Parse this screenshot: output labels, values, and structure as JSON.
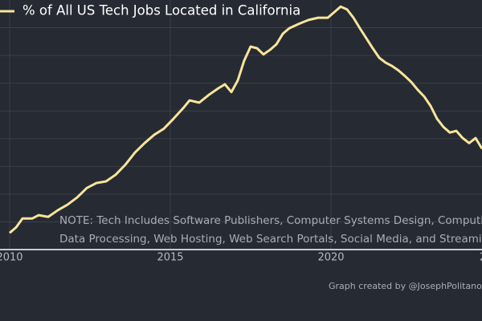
{
  "chart_data": {
    "type": "line",
    "x": [
      2010.0,
      2010.2,
      2010.4,
      2010.7,
      2010.9,
      2011.2,
      2011.5,
      2011.8,
      2012.1,
      2012.4,
      2012.7,
      2013.0,
      2013.3,
      2013.6,
      2013.9,
      2014.2,
      2014.5,
      2014.8,
      2015.1,
      2015.4,
      2015.6,
      2015.9,
      2016.2,
      2016.5,
      2016.7,
      2016.9,
      2017.1,
      2017.3,
      2017.5,
      2017.7,
      2017.9,
      2018.1,
      2018.3,
      2018.5,
      2018.7,
      2019.0,
      2019.3,
      2019.6,
      2019.9,
      2020.1,
      2020.3,
      2020.5,
      2020.7,
      2020.9,
      2021.1,
      2021.3,
      2021.5,
      2021.7,
      2021.9,
      2022.1,
      2022.3,
      2022.5,
      2022.7,
      2022.9,
      2023.1,
      2023.3,
      2023.5,
      2023.7,
      2023.9,
      2024.1,
      2024.3,
      2024.5,
      2024.7
    ],
    "series": [
      {
        "name": "% of All US Tech Jobs Located in California",
        "color": "#f7e59a",
        "values": [
          19.3,
          19.4,
          19.56,
          19.56,
          19.62,
          19.59,
          19.71,
          19.81,
          19.94,
          20.11,
          20.2,
          20.23,
          20.35,
          20.53,
          20.75,
          20.92,
          21.07,
          21.18,
          21.36,
          21.55,
          21.69,
          21.65,
          21.79,
          21.91,
          21.98,
          21.84,
          22.05,
          22.41,
          22.66,
          22.63,
          22.52,
          22.6,
          22.7,
          22.89,
          22.99,
          23.07,
          23.14,
          23.18,
          23.18,
          23.28,
          23.38,
          23.33,
          23.18,
          22.99,
          22.81,
          22.63,
          22.46,
          22.37,
          22.31,
          22.23,
          22.13,
          22.02,
          21.88,
          21.76,
          21.59,
          21.36,
          21.21,
          21.11,
          21.14,
          21.01,
          20.92,
          21.01,
          20.82
        ]
      }
    ],
    "xlim": [
      2009.7,
      2024.7
    ],
    "xticks": [
      2010,
      2015,
      2020,
      {
        "value": 2025,
        "label": "2"
      }
    ],
    "ylim": [
      19,
      23.5
    ],
    "yticks": [
      19.5,
      20,
      20.5,
      21,
      21.5,
      22,
      22.5,
      23
    ],
    "grid": true,
    "annotations": [
      "NOTE: Tech Includes Software Publishers, Computer Systems Design, Computing In",
      "Data Processing, Web Hosting, Web Search Portals, Social Media, and Streaming Se"
    ],
    "credit": "Graph created by @JosephPolitano us"
  }
}
